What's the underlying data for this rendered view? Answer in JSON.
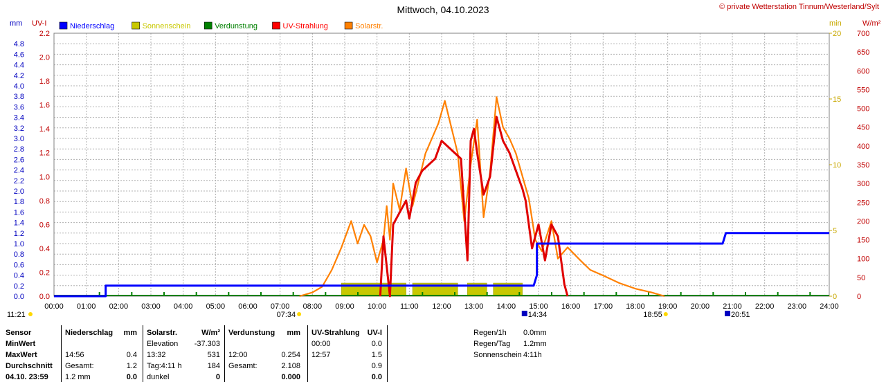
{
  "title": "Mittwoch, 04.10.2023",
  "copyright": "© private Wetterstation Tinnum/Westerland/Sylt",
  "axes": {
    "left_unit_mm": "mm",
    "left_unit_uv": "UV-I",
    "right_unit_min": "min",
    "right_unit_wm2": "W/m²",
    "mm_ticks": [
      "4.8",
      "4.6",
      "4.4",
      "4.2",
      "4.0",
      "3.8",
      "3.6",
      "3.4",
      "3.2",
      "3.0",
      "2.8",
      "2.6",
      "2.4",
      "2.2",
      "2.0",
      "1.8",
      "1.6",
      "1.4",
      "1.2",
      "1.0",
      "0.8",
      "0.6",
      "0.4",
      "0.2",
      "0.0"
    ],
    "uv_ticks": [
      "2.2",
      "2.0",
      "1.8",
      "1.6",
      "1.4",
      "1.2",
      "1.0",
      "0.8",
      "0.6",
      "0.4",
      "0.2",
      "0.0"
    ],
    "min_ticks": [
      "20",
      "15",
      "10",
      "5",
      "0"
    ],
    "wm2_ticks": [
      "700",
      "650",
      "600",
      "550",
      "500",
      "450",
      "400",
      "350",
      "300",
      "250",
      "200",
      "150",
      "100",
      "50",
      "0"
    ],
    "time_ticks": [
      "00:00",
      "01:00",
      "02:00",
      "03:00",
      "04:00",
      "05:00",
      "06:00",
      "07:00",
      "08:00",
      "09:00",
      "10:00",
      "11:00",
      "12:00",
      "13:00",
      "14:00",
      "15:00",
      "16:00",
      "17:00",
      "18:00",
      "19:00",
      "20:00",
      "21:00",
      "22:00",
      "23:00",
      "24:00"
    ]
  },
  "markers": {
    "current_time": "11:21",
    "sunrise": "07:34",
    "uv_max_time": "14:34",
    "sunset": "18:55",
    "rain_time": "20:51"
  },
  "legend": [
    {
      "label": "Niederschlag",
      "color": "#0000ff"
    },
    {
      "label": "Sonnenschein",
      "color": "#c8c800"
    },
    {
      "label": "Verdunstung",
      "color": "#008000"
    },
    {
      "label": "UV-Strahlung",
      "color": "#ff0000"
    },
    {
      "label": "Solarstr.",
      "color": "#ff8000"
    }
  ],
  "colors": {
    "rain": "#0000ff",
    "sunshine": "#c8c800",
    "evaporation": "#008000",
    "uv": "#e00000",
    "solar": "#ff8000",
    "grid": "#b0b0b0",
    "left_axis_text": "#0000c0",
    "uv_axis_text": "#c00000",
    "right_axis_text": "#c8a800"
  },
  "chart_data": {
    "type": "line",
    "title": "Mittwoch, 04.10.2023",
    "x_unit": "hours",
    "xlim": [
      0,
      24
    ],
    "series": [
      {
        "name": "Niederschlag",
        "unit": "mm",
        "axis": "mm",
        "ylim": [
          0,
          4.8
        ],
        "points": [
          [
            0,
            0
          ],
          [
            1.6,
            0
          ],
          [
            1.6,
            0.2
          ],
          [
            14.85,
            0.2
          ],
          [
            14.95,
            0.4
          ],
          [
            14.95,
            1.0
          ],
          [
            20.7,
            1.0
          ],
          [
            20.8,
            1.2
          ],
          [
            24,
            1.2
          ]
        ]
      },
      {
        "name": "Solarstr.",
        "unit": "W/m²",
        "axis": "wm2",
        "ylim": [
          0,
          700
        ],
        "points": [
          [
            7.6,
            0
          ],
          [
            8.0,
            10
          ],
          [
            8.3,
            25
          ],
          [
            8.6,
            70
          ],
          [
            8.9,
            130
          ],
          [
            9.2,
            200
          ],
          [
            9.4,
            140
          ],
          [
            9.6,
            190
          ],
          [
            9.8,
            160
          ],
          [
            10.0,
            90
          ],
          [
            10.2,
            150
          ],
          [
            10.3,
            240
          ],
          [
            10.4,
            150
          ],
          [
            10.5,
            300
          ],
          [
            10.7,
            230
          ],
          [
            10.9,
            340
          ],
          [
            11.1,
            240
          ],
          [
            11.3,
            310
          ],
          [
            11.5,
            380
          ],
          [
            11.7,
            420
          ],
          [
            11.9,
            460
          ],
          [
            12.1,
            520
          ],
          [
            12.3,
            450
          ],
          [
            12.5,
            380
          ],
          [
            12.7,
            200
          ],
          [
            12.9,
            350
          ],
          [
            13.1,
            470
          ],
          [
            13.3,
            210
          ],
          [
            13.5,
            330
          ],
          [
            13.7,
            530
          ],
          [
            13.9,
            450
          ],
          [
            14.1,
            420
          ],
          [
            14.3,
            380
          ],
          [
            14.5,
            320
          ],
          [
            14.7,
            260
          ],
          [
            14.9,
            150
          ],
          [
            15.1,
            120
          ],
          [
            15.4,
            200
          ],
          [
            15.6,
            100
          ],
          [
            15.9,
            130
          ],
          [
            16.3,
            95
          ],
          [
            16.6,
            70
          ],
          [
            17.0,
            55
          ],
          [
            17.5,
            35
          ],
          [
            18.0,
            20
          ],
          [
            18.5,
            10
          ],
          [
            18.9,
            0
          ]
        ]
      },
      {
        "name": "UV-Strahlung",
        "unit": "UV-I",
        "axis": "uv",
        "ylim": [
          0,
          2.2
        ],
        "points": [
          [
            10.1,
            0
          ],
          [
            10.2,
            0.5
          ],
          [
            10.4,
            0.0
          ],
          [
            10.5,
            0.6
          ],
          [
            10.7,
            0.7
          ],
          [
            10.9,
            0.8
          ],
          [
            11.0,
            0.65
          ],
          [
            11.2,
            0.95
          ],
          [
            11.4,
            1.05
          ],
          [
            11.6,
            1.1
          ],
          [
            11.8,
            1.15
          ],
          [
            12.0,
            1.3
          ],
          [
            12.2,
            1.25
          ],
          [
            12.4,
            1.2
          ],
          [
            12.6,
            1.15
          ],
          [
            12.8,
            0.3
          ],
          [
            12.9,
            1.3
          ],
          [
            13.0,
            1.4
          ],
          [
            13.1,
            1.2
          ],
          [
            13.3,
            0.85
          ],
          [
            13.5,
            1.0
          ],
          [
            13.7,
            1.5
          ],
          [
            13.9,
            1.3
          ],
          [
            14.1,
            1.2
          ],
          [
            14.3,
            1.05
          ],
          [
            14.5,
            0.9
          ],
          [
            14.6,
            0.8
          ],
          [
            14.8,
            0.4
          ],
          [
            15.0,
            0.6
          ],
          [
            15.2,
            0.3
          ],
          [
            15.4,
            0.6
          ],
          [
            15.6,
            0.5
          ],
          [
            15.8,
            0.1
          ],
          [
            15.9,
            0.0
          ]
        ]
      },
      {
        "name": "Sonnenschein",
        "unit": "min",
        "axis": "min",
        "ylim": [
          0,
          20
        ],
        "points": [
          [
            8.9,
            1
          ],
          [
            10.9,
            1
          ],
          [
            11.1,
            1
          ],
          [
            12.5,
            1
          ],
          [
            12.8,
            1
          ],
          [
            13.4,
            1
          ],
          [
            13.6,
            1
          ],
          [
            14.5,
            1
          ]
        ]
      },
      {
        "name": "Verdunstung",
        "unit": "mm",
        "axis": "mm",
        "ylim": [
          0,
          4.8
        ],
        "points": [
          [
            0,
            0
          ],
          [
            24,
            0
          ]
        ]
      }
    ]
  },
  "table": {
    "rows": [
      {
        "c0": "Sensor",
        "c1": "Niederschlag",
        "c2": "mm",
        "c3": "Solarstr.",
        "c4": "W/m²",
        "c5": "Verdunstung",
        "c6": "mm",
        "c7": "UV-Strahlung",
        "c8": "UV-I",
        "c9": "Regen/1h",
        "c10": "0.0mm"
      },
      {
        "c0": "MinWert",
        "c1": "",
        "c2": "",
        "c3": "Elevation",
        "c4": "-37.303",
        "c5": "",
        "c6": "",
        "c7": "00:00",
        "c8": "0.0",
        "c9": "Regen/Tag",
        "c10": "1.2mm"
      },
      {
        "c0": "MaxWert",
        "c1": "14:56",
        "c2": "0.4",
        "c3": "13:32",
        "c4": "531",
        "c5": "12:00",
        "c6": "0.254",
        "c7": "12:57",
        "c8": "1.5",
        "c9": "Sonnenschein",
        "c10": "4:11h"
      },
      {
        "c0": "Durchschnitt",
        "c1": "Gesamt:",
        "c2": "1.2",
        "c3": "Tag:4:11 h",
        "c4": "184",
        "c5": "Gesamt:",
        "c6": "2.108",
        "c7": "",
        "c8": "0.9",
        "c9": "",
        "c10": ""
      },
      {
        "c0": "04.10. 23:59",
        "c1": "1.2 mm",
        "c2": "0.0",
        "c3": "dunkel",
        "c4": "0",
        "c5": "",
        "c6": "0.000",
        "c7": "",
        "c8": "0.0",
        "c9": "",
        "c10": ""
      }
    ]
  }
}
